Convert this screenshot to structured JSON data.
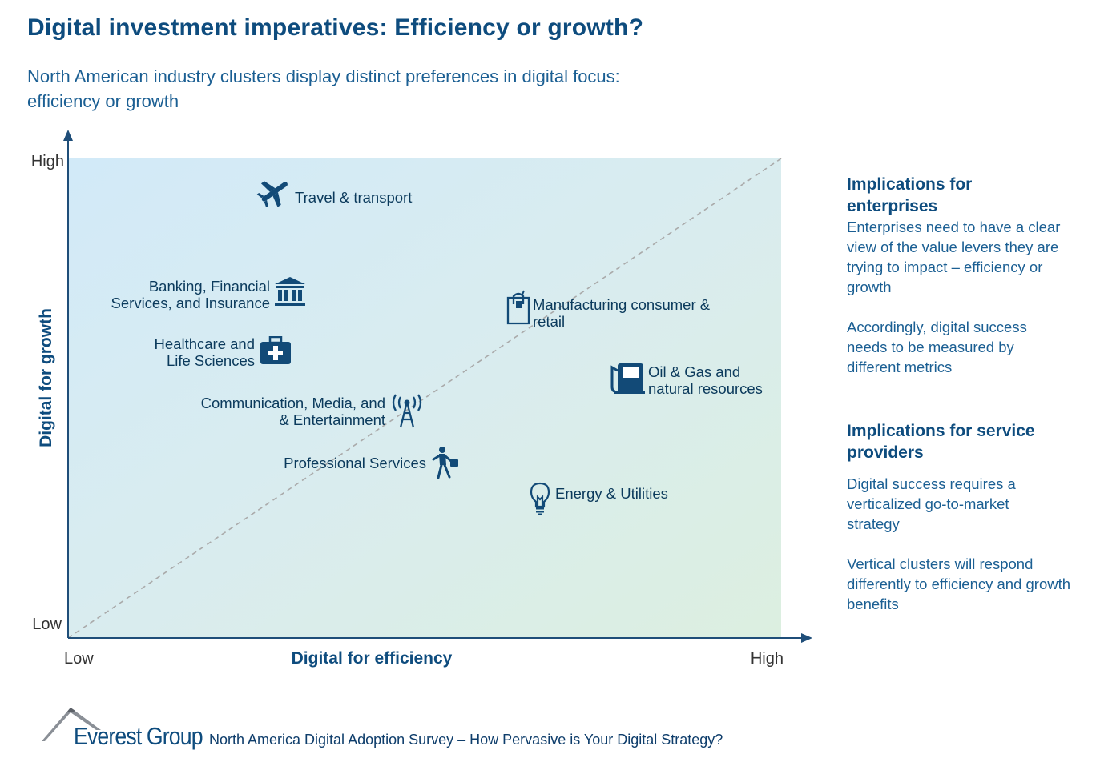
{
  "header": {
    "title": "Digital investment imperatives: Efficiency or growth?",
    "subtitle_line1": "North American industry clusters display distinct preferences in digital focus:",
    "subtitle_line2": "efficiency or growth"
  },
  "chart_data": {
    "type": "scatter",
    "xlabel": "Digital for efficiency",
    "ylabel": "Digital for growth",
    "x_ticks": [
      "Low",
      "High"
    ],
    "y_ticks": [
      "Low",
      "High"
    ],
    "xlim": [
      0,
      1
    ],
    "ylim": [
      0,
      1
    ],
    "reference_line": "diagonal",
    "points": [
      {
        "lines": [
          "Travel & transport"
        ],
        "icon": "airplane-icon",
        "x": 0.29,
        "y": 0.92
      },
      {
        "lines": [
          "Banking, Financial",
          "Services, and Insurance"
        ],
        "icon": "bank-icon",
        "x": 0.31,
        "y": 0.74
      },
      {
        "lines": [
          "Healthcare and",
          "Life Sciences"
        ],
        "icon": "medical-kit-icon",
        "x": 0.29,
        "y": 0.61
      },
      {
        "lines": [
          "Manufacturing consumer &",
          "retail"
        ],
        "icon": "shopping-bag-icon",
        "x": 0.63,
        "y": 0.71
      },
      {
        "lines": [
          "Oil & Gas and",
          "natural resources"
        ],
        "icon": "fuel-pump-icon",
        "x": 0.79,
        "y": 0.56
      },
      {
        "lines": [
          "Communication, Media, and",
          "& Entertainment"
        ],
        "icon": "antenna-tower-icon",
        "x": 0.47,
        "y": 0.5
      },
      {
        "lines": [
          "Professional Services"
        ],
        "icon": "business-person-icon",
        "x": 0.53,
        "y": 0.38
      },
      {
        "lines": [
          "Energy & Utilities"
        ],
        "icon": "light-bulb-icon",
        "x": 0.66,
        "y": 0.31
      }
    ]
  },
  "implications": {
    "enterprises_heading": "Implications for enterprises",
    "enterprises_p1": "Enterprises need to have a clear view of the value levers they are trying to impact – efficiency or growth",
    "enterprises_p2": "Accordingly, digital success needs to be measured by different metrics",
    "providers_heading": "Implications for service providers",
    "providers_p1": "Digital success requires a verticalized go-to-market strategy",
    "providers_p2": "Vertical clusters will respond differently to efficiency and growth benefits"
  },
  "footer": {
    "brand": "Everest Group",
    "source": "North America Digital Adoption Survey – How Pervasive is Your Digital Strategy?"
  },
  "colors": {
    "primary": "#0e4c7e",
    "icon": "#124a77",
    "growth_zone": "#d4ebf7",
    "efficiency_zone": "#dcefe0"
  }
}
